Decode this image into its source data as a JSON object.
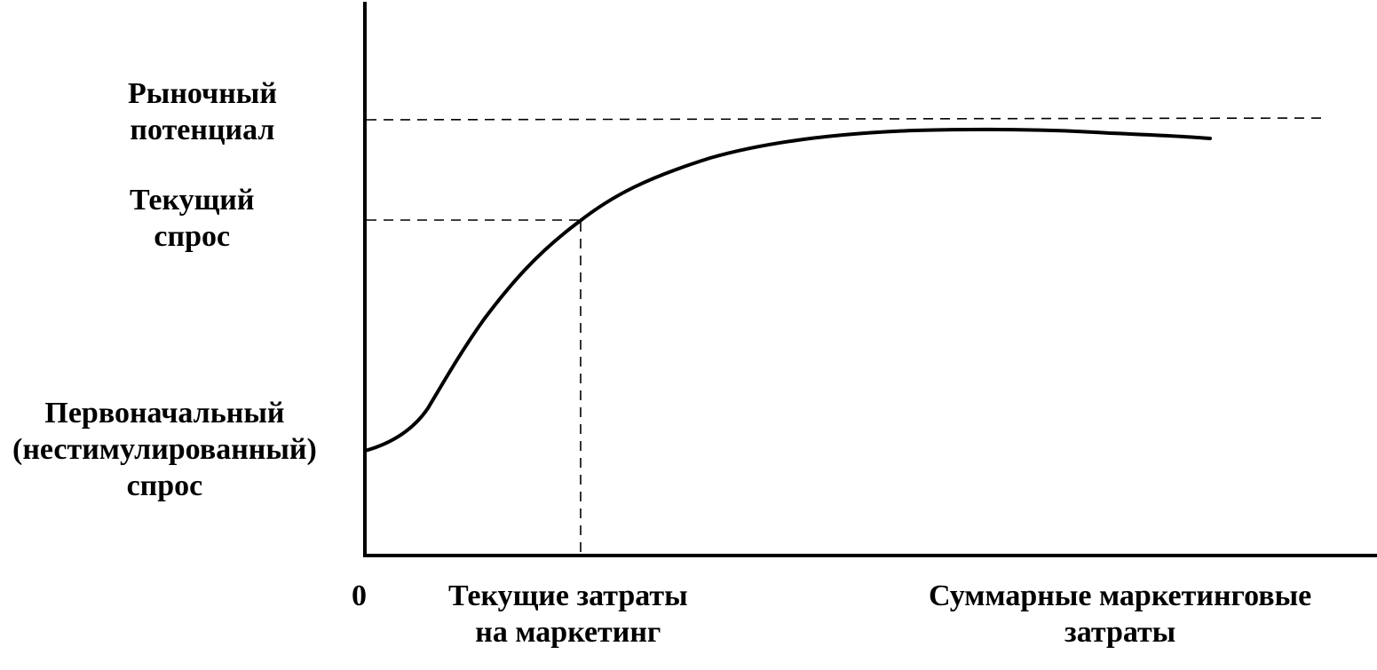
{
  "labels": {
    "market_potential": [
      "Рыночный",
      "потенциал"
    ],
    "current_demand": [
      "Текущий",
      "спрос"
    ],
    "initial_demand": [
      "Первоначальный",
      "(нестимулированный)",
      "спрос"
    ],
    "origin": "0",
    "current_spend": [
      "Текущие затраты",
      "на маркетинг"
    ],
    "total_spend": [
      "Суммарные маркетинговые",
      "затраты"
    ]
  },
  "colors": {
    "ink": "#000000",
    "background": "#ffffff"
  }
}
